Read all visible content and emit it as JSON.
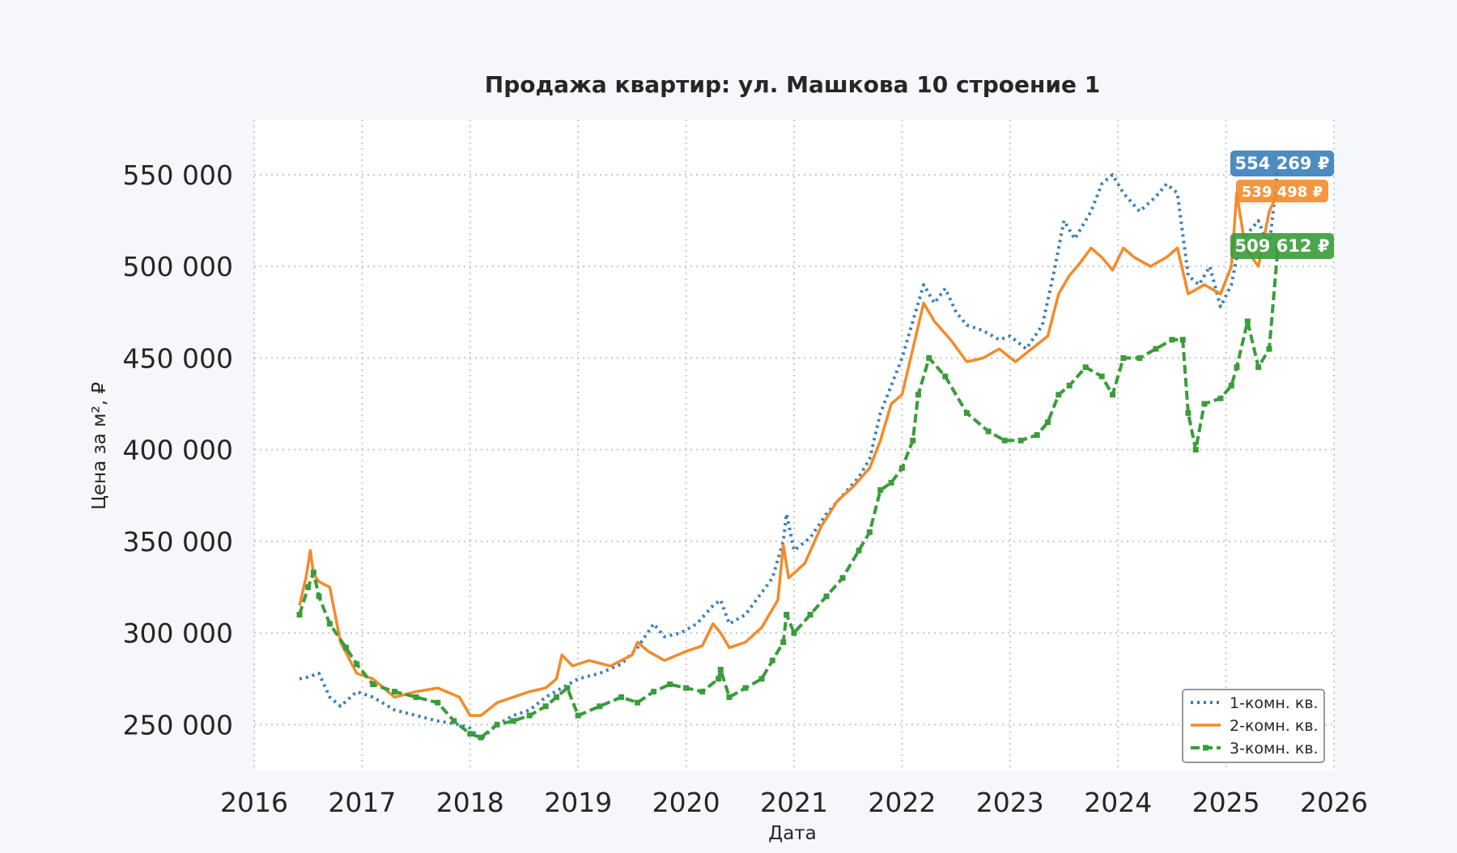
{
  "chart_data": {
    "type": "line",
    "title": "Продажа квартир: ул. Машкова 10 строение 1",
    "xlabel": "Дата",
    "ylabel": "Цена за м², ₽",
    "xlim": [
      2016.0,
      2026.0
    ],
    "ylim": [
      225000,
      580000
    ],
    "x_ticks": [
      2016,
      2017,
      2018,
      2019,
      2020,
      2021,
      2022,
      2023,
      2024,
      2025,
      2026
    ],
    "y_ticks": [
      250000,
      300000,
      350000,
      400000,
      450000,
      500000,
      550000
    ],
    "y_tick_labels": [
      "250 000",
      "300 000",
      "350 000",
      "400 000",
      "450 000",
      "500 000",
      "550 000"
    ],
    "grid": true,
    "legend_position": "bottom-right",
    "end_labels": [
      {
        "series": "1-комн. кв.",
        "text": "554 269 ₽",
        "value": 554269
      },
      {
        "series": "2-комн. кв.",
        "text": "539 498 ₽",
        "value": 539498
      },
      {
        "series": "3-комн. кв.",
        "text": "509 612 ₽",
        "value": 509612
      }
    ],
    "series": [
      {
        "name": "1-комн. кв.",
        "color": "#3a7fb8",
        "style": "dotted",
        "x": [
          2016.42,
          2016.5,
          2016.6,
          2016.7,
          2016.8,
          2016.95,
          2017.1,
          2017.3,
          2017.5,
          2017.7,
          2017.9,
          2018.0,
          2018.1,
          2018.25,
          2018.4,
          2018.55,
          2018.7,
          2018.85,
          2019.0,
          2019.2,
          2019.4,
          2019.55,
          2019.7,
          2019.8,
          2019.95,
          2020.1,
          2020.25,
          2020.32,
          2020.4,
          2020.55,
          2020.7,
          2020.8,
          2020.9,
          2020.93,
          2021.0,
          2021.15,
          2021.3,
          2021.45,
          2021.6,
          2021.7,
          2021.8,
          2021.9,
          2022.0,
          2022.1,
          2022.2,
          2022.3,
          2022.4,
          2022.5,
          2022.6,
          2022.75,
          2022.9,
          2023.0,
          2023.15,
          2023.3,
          2023.4,
          2023.5,
          2023.6,
          2023.75,
          2023.85,
          2023.95,
          2024.05,
          2024.2,
          2024.35,
          2024.45,
          2024.55,
          2024.65,
          2024.75,
          2024.85,
          2024.95,
          2025.05,
          2025.1,
          2025.2,
          2025.3,
          2025.4,
          2025.48
        ],
        "y": [
          275000,
          276000,
          278000,
          265000,
          260000,
          268000,
          265000,
          258000,
          255000,
          252000,
          250000,
          248000,
          242000,
          250000,
          255000,
          258000,
          265000,
          270000,
          275000,
          278000,
          283000,
          292000,
          305000,
          298000,
          300000,
          305000,
          315000,
          318000,
          305000,
          310000,
          322000,
          330000,
          350000,
          365000,
          345000,
          352000,
          365000,
          375000,
          385000,
          395000,
          420000,
          435000,
          450000,
          470000,
          490000,
          480000,
          488000,
          475000,
          468000,
          465000,
          460000,
          462000,
          455000,
          468000,
          495000,
          525000,
          515000,
          530000,
          545000,
          550000,
          540000,
          530000,
          538000,
          545000,
          540000,
          495000,
          490000,
          500000,
          478000,
          490000,
          505000,
          518000,
          525000,
          510000,
          554269
        ]
      },
      {
        "name": "2-комн. кв.",
        "color": "#f28b2a",
        "style": "solid",
        "x": [
          2016.42,
          2016.48,
          2016.52,
          2016.55,
          2016.6,
          2016.7,
          2016.8,
          2016.95,
          2017.1,
          2017.3,
          2017.5,
          2017.7,
          2017.9,
          2018.0,
          2018.1,
          2018.25,
          2018.4,
          2018.55,
          2018.7,
          2018.8,
          2018.85,
          2018.95,
          2019.1,
          2019.3,
          2019.5,
          2019.55,
          2019.65,
          2019.8,
          2020.0,
          2020.15,
          2020.25,
          2020.32,
          2020.4,
          2020.55,
          2020.7,
          2020.85,
          2020.9,
          2020.95,
          2021.1,
          2021.25,
          2021.4,
          2021.55,
          2021.7,
          2021.8,
          2021.9,
          2022.0,
          2022.1,
          2022.2,
          2022.3,
          2022.45,
          2022.6,
          2022.75,
          2022.9,
          2023.05,
          2023.2,
          2023.35,
          2023.45,
          2023.55,
          2023.65,
          2023.75,
          2023.85,
          2023.95,
          2024.05,
          2024.15,
          2024.3,
          2024.45,
          2024.55,
          2024.65,
          2024.8,
          2024.95,
          2025.05,
          2025.1,
          2025.18,
          2025.3,
          2025.4,
          2025.48
        ],
        "y": [
          315000,
          330000,
          345000,
          332000,
          328000,
          325000,
          295000,
          278000,
          275000,
          265000,
          268000,
          270000,
          265000,
          255000,
          255000,
          262000,
          265000,
          268000,
          270000,
          275000,
          288000,
          282000,
          285000,
          282000,
          288000,
          295000,
          290000,
          285000,
          290000,
          293000,
          305000,
          300000,
          292000,
          295000,
          303000,
          318000,
          348000,
          330000,
          338000,
          358000,
          372000,
          380000,
          390000,
          405000,
          425000,
          430000,
          455000,
          480000,
          470000,
          460000,
          448000,
          450000,
          455000,
          448000,
          455000,
          462000,
          485000,
          495000,
          502000,
          510000,
          505000,
          498000,
          510000,
          505000,
          500000,
          505000,
          510000,
          485000,
          490000,
          485000,
          500000,
          540000,
          510000,
          500000,
          530000,
          539498
        ]
      },
      {
        "name": "3-комн. кв.",
        "color": "#3a9c3a",
        "style": "dashed",
        "x": [
          2016.42,
          2016.5,
          2016.55,
          2016.6,
          2016.7,
          2016.85,
          2016.95,
          2017.1,
          2017.3,
          2017.5,
          2017.7,
          2017.85,
          2018.0,
          2018.1,
          2018.25,
          2018.4,
          2018.55,
          2018.7,
          2018.8,
          2018.9,
          2019.0,
          2019.2,
          2019.4,
          2019.55,
          2019.7,
          2019.85,
          2020.0,
          2020.15,
          2020.3,
          2020.32,
          2020.4,
          2020.55,
          2020.7,
          2020.8,
          2020.9,
          2020.93,
          2021.0,
          2021.15,
          2021.3,
          2021.45,
          2021.6,
          2021.7,
          2021.8,
          2021.9,
          2022.0,
          2022.1,
          2022.15,
          2022.25,
          2022.4,
          2022.6,
          2022.8,
          2022.95,
          2023.1,
          2023.25,
          2023.35,
          2023.45,
          2023.55,
          2023.7,
          2023.85,
          2023.95,
          2024.05,
          2024.2,
          2024.35,
          2024.5,
          2024.6,
          2024.65,
          2024.72,
          2024.8,
          2024.95,
          2025.05,
          2025.1,
          2025.2,
          2025.3,
          2025.4,
          2025.48
        ],
        "y": [
          310000,
          325000,
          333000,
          320000,
          305000,
          292000,
          283000,
          272000,
          268000,
          265000,
          262000,
          252000,
          245000,
          243000,
          250000,
          252000,
          255000,
          260000,
          265000,
          270000,
          255000,
          260000,
          265000,
          262000,
          268000,
          272000,
          270000,
          268000,
          275000,
          280000,
          265000,
          270000,
          275000,
          285000,
          295000,
          310000,
          300000,
          310000,
          320000,
          330000,
          345000,
          355000,
          378000,
          382000,
          390000,
          405000,
          430000,
          450000,
          440000,
          420000,
          410000,
          405000,
          405000,
          408000,
          415000,
          430000,
          435000,
          445000,
          440000,
          430000,
          450000,
          450000,
          455000,
          460000,
          460000,
          420000,
          400000,
          425000,
          428000,
          435000,
          445000,
          470000,
          445000,
          455000,
          509612
        ]
      }
    ]
  }
}
